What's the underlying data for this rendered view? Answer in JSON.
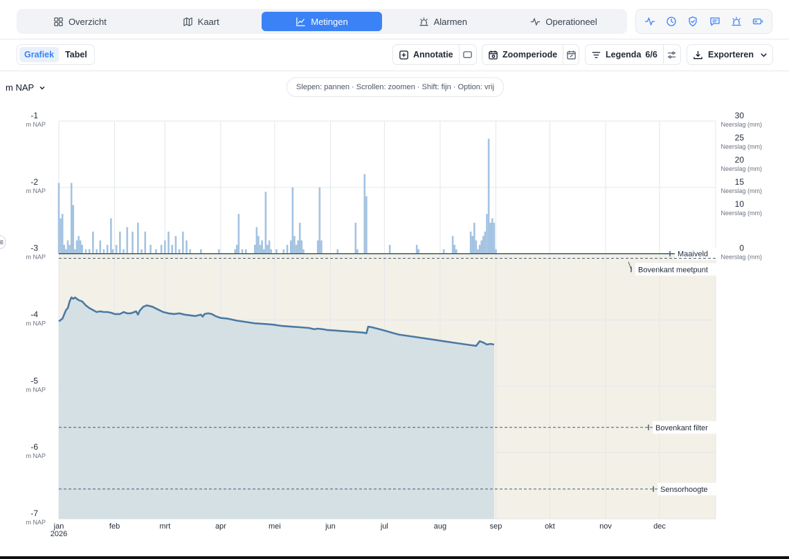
{
  "nav": {
    "tabs": [
      {
        "label": "Overzicht",
        "icon": "dashboard-icon"
      },
      {
        "label": "Kaart",
        "icon": "map-icon"
      },
      {
        "label": "Metingen",
        "icon": "line-chart-icon",
        "active": true
      },
      {
        "label": "Alarmen",
        "icon": "siren-icon"
      },
      {
        "label": "Operationeel",
        "icon": "activity-icon"
      }
    ],
    "icon_buttons": [
      "activity-icon",
      "clock-icon",
      "shield-icon",
      "message-icon",
      "siren-icon",
      "battery-icon"
    ]
  },
  "toolbar": {
    "view_toggle": [
      "Grafiek",
      "Tabel"
    ],
    "active_view": "Grafiek",
    "annotation_label": "Annotatie",
    "zoom_label": "Zoomperiode",
    "legend_label": "Legenda",
    "legend_count": "6/6",
    "export_label": "Exporteren"
  },
  "unit_selector": "m NAP",
  "hint": "Slepen: pannen · Scrollen: zoomen · Shift: fijn · Option: vrij",
  "colors": {
    "accent": "#3b82f6",
    "series": "#4a7aa3",
    "area_fill": "#d3dee5",
    "ground_fill": "#f3f0e7",
    "precip": "#9fc0e0"
  },
  "chart_data": {
    "type": "line",
    "x_ticks": [
      "jan",
      "feb",
      "mrt",
      "apr",
      "mei",
      "jun",
      "jul",
      "aug",
      "sep",
      "okt",
      "nov",
      "dec"
    ],
    "x_year": "2026",
    "y_left": {
      "unit": "m NAP",
      "ticks": [
        -1,
        -2,
        -3,
        -4,
        -5,
        -6,
        -7
      ],
      "ylim": [
        -7,
        -1
      ]
    },
    "y_right": {
      "unit": "Neerslag (mm)",
      "ticks": [
        0,
        10,
        15,
        20,
        25,
        30
      ],
      "ylim": [
        0,
        30
      ]
    },
    "reference_lines": [
      {
        "label": "Maaiveld",
        "value": -3.0,
        "style": "solid"
      },
      {
        "label": "Bovenkant meetpunt",
        "value": -3.07,
        "style": "dashed"
      },
      {
        "label": "Bovenkant filter",
        "value": -5.62,
        "style": "dashed"
      },
      {
        "label": "Sensorhoogte",
        "value": -6.55,
        "style": "dashed"
      }
    ],
    "groundwater": [
      [
        1,
        -4.02
      ],
      [
        3,
        -3.98
      ],
      [
        5,
        -3.85
      ],
      [
        6,
        -3.82
      ],
      [
        7,
        -3.72
      ],
      [
        8,
        -3.66
      ],
      [
        9,
        -3.68
      ],
      [
        10,
        -3.66
      ],
      [
        12,
        -3.7
      ],
      [
        14,
        -3.72
      ],
      [
        16,
        -3.78
      ],
      [
        18,
        -3.82
      ],
      [
        20,
        -3.85
      ],
      [
        22,
        -3.88
      ],
      [
        24,
        -3.87
      ],
      [
        26,
        -3.88
      ],
      [
        28,
        -3.88
      ],
      [
        30,
        -3.89
      ],
      [
        32,
        -3.91
      ],
      [
        35,
        -3.91
      ],
      [
        37,
        -3.88
      ],
      [
        39,
        -3.9
      ],
      [
        41,
        -3.9
      ],
      [
        43,
        -3.88
      ],
      [
        44,
        -3.87
      ],
      [
        45,
        -3.92
      ],
      [
        46,
        -3.86
      ],
      [
        48,
        -3.8
      ],
      [
        50,
        -3.78
      ],
      [
        53,
        -3.8
      ],
      [
        56,
        -3.84
      ],
      [
        59,
        -3.88
      ],
      [
        62,
        -3.9
      ],
      [
        65,
        -3.91
      ],
      [
        68,
        -3.9
      ],
      [
        71,
        -3.92
      ],
      [
        74,
        -3.93
      ],
      [
        77,
        -3.94
      ],
      [
        80,
        -3.92
      ],
      [
        81,
        -3.95
      ],
      [
        82,
        -3.91
      ],
      [
        84,
        -3.9
      ],
      [
        86,
        -3.91
      ],
      [
        88,
        -3.94
      ],
      [
        91,
        -3.97
      ],
      [
        95,
        -3.98
      ],
      [
        100,
        -4.01
      ],
      [
        105,
        -4.03
      ],
      [
        110,
        -4.05
      ],
      [
        115,
        -4.06
      ],
      [
        120,
        -4.07
      ],
      [
        125,
        -4.09
      ],
      [
        130,
        -4.1
      ],
      [
        135,
        -4.11
      ],
      [
        140,
        -4.12
      ],
      [
        143,
        -4.14
      ],
      [
        145,
        -4.13
      ],
      [
        148,
        -4.14
      ],
      [
        150,
        -4.15
      ],
      [
        155,
        -4.16
      ],
      [
        160,
        -4.17
      ],
      [
        165,
        -4.18
      ],
      [
        170,
        -4.19
      ],
      [
        172,
        -4.2
      ],
      [
        173,
        -4.1
      ],
      [
        175,
        -4.11
      ],
      [
        178,
        -4.13
      ],
      [
        182,
        -4.16
      ],
      [
        186,
        -4.19
      ],
      [
        190,
        -4.22
      ],
      [
        195,
        -4.24
      ],
      [
        200,
        -4.26
      ],
      [
        205,
        -4.28
      ],
      [
        210,
        -4.3
      ],
      [
        215,
        -4.32
      ],
      [
        220,
        -4.34
      ],
      [
        225,
        -4.36
      ],
      [
        230,
        -4.38
      ],
      [
        233,
        -4.39
      ],
      [
        235,
        -4.32
      ],
      [
        237,
        -4.34
      ],
      [
        239,
        -4.37
      ],
      [
        241,
        -4.36
      ],
      [
        243,
        -4.37
      ]
    ],
    "precipitation": [
      [
        1,
        16
      ],
      [
        2,
        8
      ],
      [
        3,
        9
      ],
      [
        4,
        2
      ],
      [
        5,
        1
      ],
      [
        6,
        3
      ],
      [
        7,
        2
      ],
      [
        8,
        16
      ],
      [
        9,
        11
      ],
      [
        10,
        1
      ],
      [
        11,
        3
      ],
      [
        12,
        4
      ],
      [
        13,
        3
      ],
      [
        14,
        2
      ],
      [
        16,
        1
      ],
      [
        18,
        1
      ],
      [
        20,
        5
      ],
      [
        22,
        1
      ],
      [
        24,
        3
      ],
      [
        26,
        1
      ],
      [
        28,
        2
      ],
      [
        30,
        8
      ],
      [
        31,
        1
      ],
      [
        33,
        2
      ],
      [
        35,
        5
      ],
      [
        37,
        1
      ],
      [
        39,
        6
      ],
      [
        42,
        5
      ],
      [
        45,
        7
      ],
      [
        47,
        1
      ],
      [
        49,
        5
      ],
      [
        52,
        2
      ],
      [
        55,
        1
      ],
      [
        58,
        2
      ],
      [
        60,
        3
      ],
      [
        62,
        5
      ],
      [
        64,
        2
      ],
      [
        66,
        4
      ],
      [
        68,
        1
      ],
      [
        70,
        5
      ],
      [
        72,
        3
      ],
      [
        74,
        1
      ],
      [
        80,
        1
      ],
      [
        90,
        1
      ],
      [
        99,
        1
      ],
      [
        100,
        2
      ],
      [
        101,
        9
      ],
      [
        103,
        1
      ],
      [
        105,
        1
      ],
      [
        110,
        2
      ],
      [
        111,
        6
      ],
      [
        112,
        4
      ],
      [
        113,
        2
      ],
      [
        114,
        3
      ],
      [
        115,
        1
      ],
      [
        116,
        14
      ],
      [
        117,
        2
      ],
      [
        118,
        3
      ],
      [
        119,
        1
      ],
      [
        122,
        1
      ],
      [
        126,
        1
      ],
      [
        128,
        2
      ],
      [
        130,
        3
      ],
      [
        131,
        15
      ],
      [
        132,
        4
      ],
      [
        133,
        2
      ],
      [
        134,
        3
      ],
      [
        135,
        7
      ],
      [
        136,
        3
      ],
      [
        137,
        1
      ],
      [
        145,
        3
      ],
      [
        146,
        15
      ],
      [
        147,
        3
      ],
      [
        156,
        1
      ],
      [
        166,
        7
      ],
      [
        167,
        1
      ],
      [
        171,
        18
      ],
      [
        172,
        13
      ],
      [
        185,
        2
      ],
      [
        200,
        2
      ],
      [
        201,
        1
      ],
      [
        215,
        1
      ],
      [
        220,
        4
      ],
      [
        221,
        2
      ],
      [
        222,
        1
      ],
      [
        230,
        5
      ],
      [
        231,
        4
      ],
      [
        232,
        7
      ],
      [
        233,
        3
      ],
      [
        234,
        1
      ],
      [
        235,
        2
      ],
      [
        236,
        3
      ],
      [
        237,
        4
      ],
      [
        238,
        5
      ],
      [
        239,
        9
      ],
      [
        240,
        26
      ],
      [
        241,
        7
      ],
      [
        242,
        8
      ],
      [
        243,
        7
      ],
      [
        244,
        1
      ]
    ]
  }
}
